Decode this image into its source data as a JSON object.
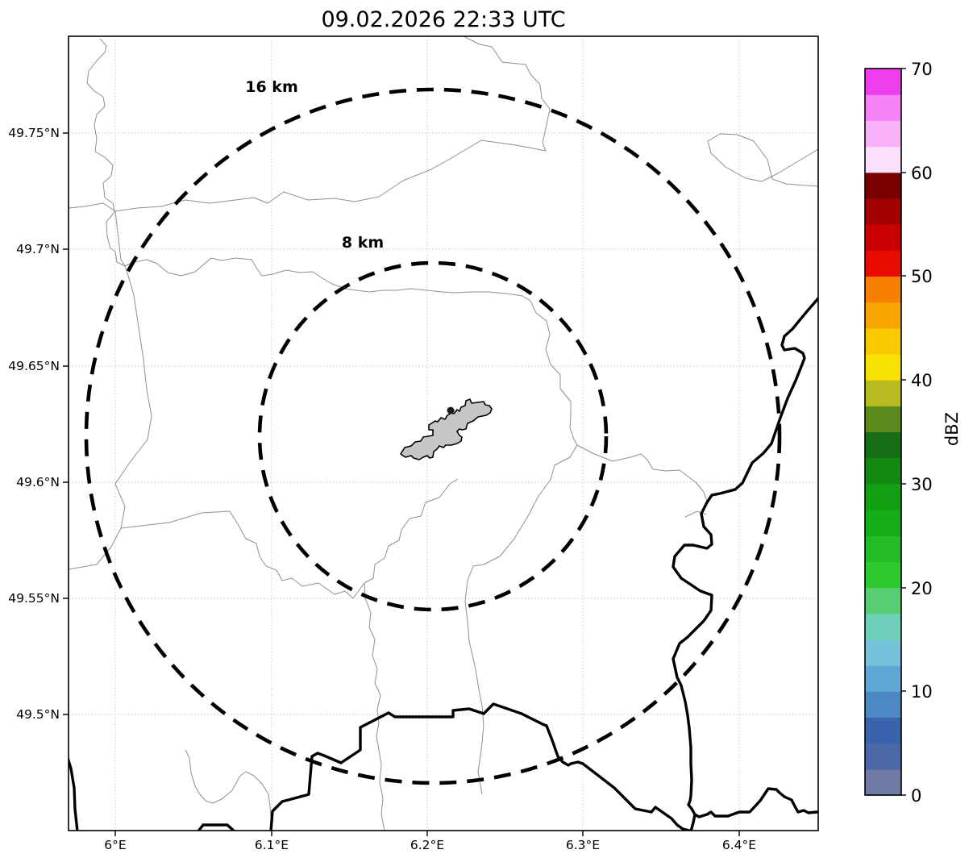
{
  "title": "09.02.2026 22:33 UTC",
  "map": {
    "x_tick_labels": [
      "6°E",
      "6.1°E",
      "6.2°E",
      "6.3°E",
      "6.4°E"
    ],
    "y_tick_labels": [
      "49.75°N",
      "49.7°N",
      "49.65°N",
      "49.6°N",
      "49.55°N",
      "49.5°N"
    ],
    "range_rings": [
      {
        "label": "8 km",
        "radius_km": 8
      },
      {
        "label": "16 km",
        "radius_km": 16
      }
    ]
  },
  "colorbar": {
    "label": "dBZ",
    "tick_labels": [
      "0",
      "10",
      "20",
      "30",
      "40",
      "50",
      "60",
      "70"
    ],
    "range": [
      0,
      70
    ],
    "segment_step_dbz": 2.5,
    "segment_colors_bottom_to_top": [
      "#6f7ba5",
      "#4b69a7",
      "#3a63ad",
      "#4b88c4",
      "#5fa7d7",
      "#74c3da",
      "#6ed0ba",
      "#58ce74",
      "#2ec92e",
      "#24bc24",
      "#16ad16",
      "#12a012",
      "#128a12",
      "#176e17",
      "#5d8a1c",
      "#b8bc20",
      "#f7e100",
      "#f9c900",
      "#f9a500",
      "#f88000",
      "#e80c00",
      "#ca0000",
      "#a30000",
      "#7a0000",
      "#fcdffc",
      "#f9b2f9",
      "#f583f5",
      "#ee3eee"
    ]
  },
  "colors": {
    "range_ring": "#000000",
    "country_border": "#000000",
    "admin_boundary": "#8f8f8f",
    "city_fill": "#c6c6c6",
    "city_outline": "#000000",
    "grid": "#c4c4c4"
  },
  "chart_data": {
    "type": "map",
    "title": "09.02.2026 22:33 UTC",
    "axes": {
      "lon_ticks_deg_E": [
        6.0,
        6.1,
        6.2,
        6.3,
        6.4
      ],
      "lat_ticks_deg_N": [
        49.75,
        49.7,
        49.65,
        49.6,
        49.55,
        49.5
      ],
      "extent": {
        "lon": [
          5.97,
          6.45
        ],
        "lat": [
          49.45,
          49.79
        ]
      }
    },
    "range_rings_km": [
      8,
      16
    ],
    "ring_center_approx": {
      "lon": 6.2,
      "lat": 49.62
    },
    "colorbar": {
      "label": "dBZ",
      "min": 0,
      "max": 70,
      "tick_step": 10,
      "segment_step": 2.5
    },
    "radar_echoes_visible": false
  }
}
